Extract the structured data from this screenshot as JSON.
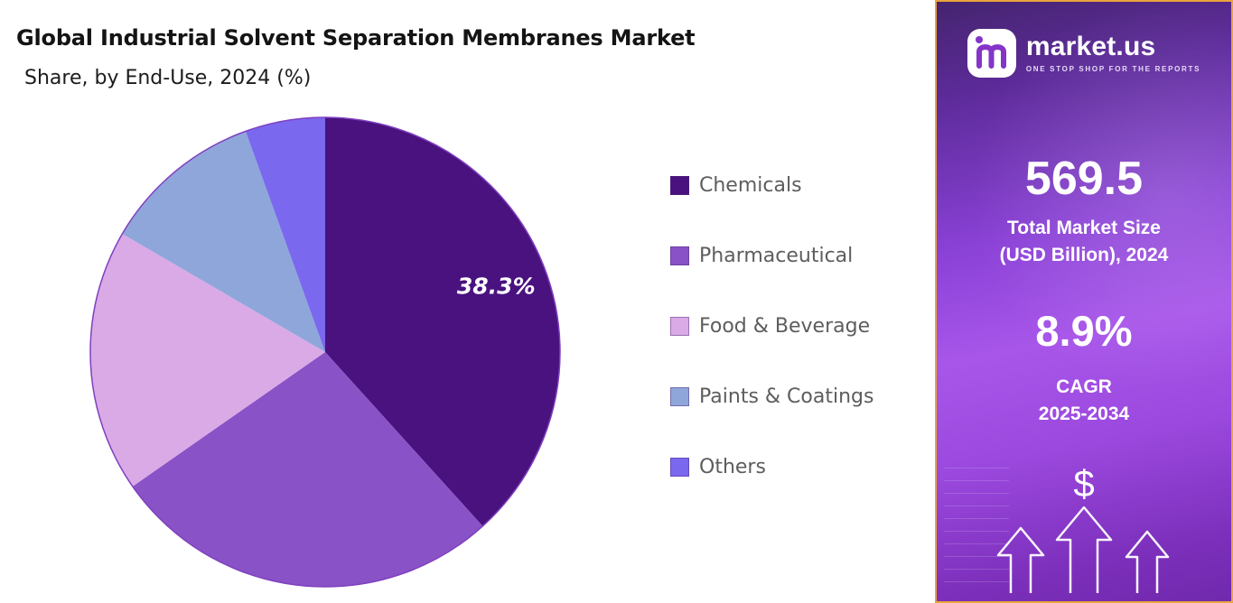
{
  "header": {
    "title": "Global Industrial Solvent Separation Membranes Market",
    "subtitle": "Share, by End-Use, 2024 (%)"
  },
  "chart_data": {
    "type": "pie",
    "categories": [
      "Chemicals",
      "Pharmaceutical",
      "Food & Beverage",
      "Paints & Coatings",
      "Others"
    ],
    "values": [
      38.3,
      27.0,
      18.1,
      11.1,
      5.5
    ],
    "colors": [
      "#49127f",
      "#8952c6",
      "#d9aae6",
      "#8fa6da",
      "#7a68ee"
    ],
    "displayed_labels": [
      {
        "category": "Chemicals",
        "text": "38.3%"
      }
    ],
    "start_angle_deg": 0,
    "direction": "clockwise",
    "legend_position": "right",
    "title": "Global Industrial Solvent Separation Membranes Market",
    "subtitle": "Share, by End-Use, 2024 (%)"
  },
  "sidebar": {
    "logo": {
      "brand": "market.us",
      "tagline": "ONE STOP SHOP FOR THE REPORTS"
    },
    "market_size": {
      "value": "569.5",
      "label_line1": "Total Market Size",
      "label_line2": "(USD Billion), 2024"
    },
    "cagr": {
      "value": "8.9%",
      "label_line1": "CAGR",
      "label_line2": "2025-2034"
    },
    "dollar_symbol": "$",
    "colors": {
      "panel_purple": "#8a41d6",
      "border_accent": "#eaa33c",
      "logo_glyph": "#8435c8"
    }
  }
}
